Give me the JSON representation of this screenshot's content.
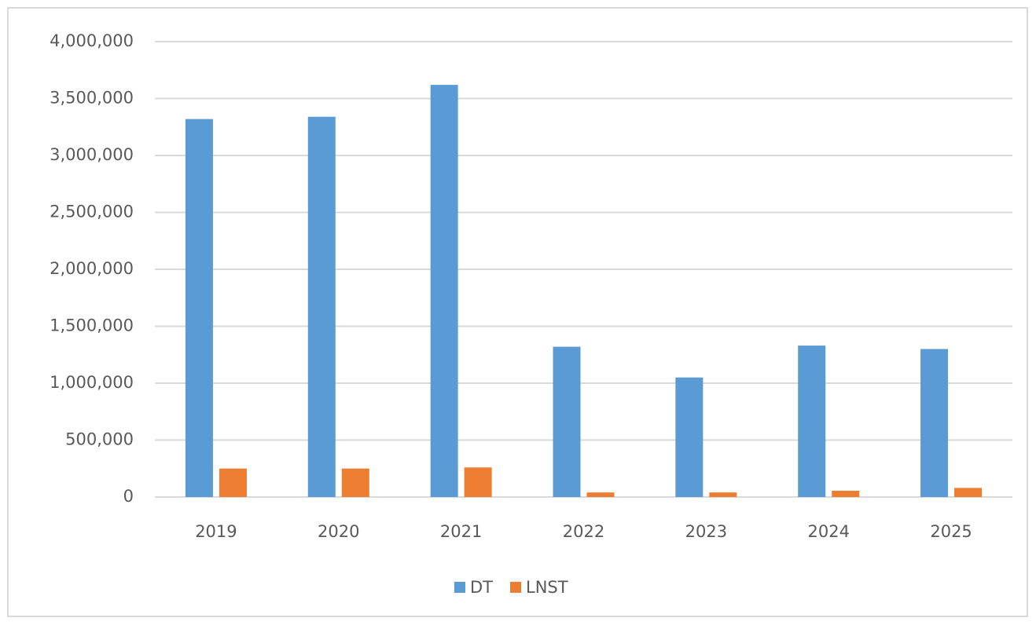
{
  "chart_data": {
    "type": "bar",
    "categories": [
      "2019",
      "2020",
      "2021",
      "2022",
      "2023",
      "2024",
      "2025"
    ],
    "series": [
      {
        "name": "DT",
        "color": "#5b9bd5",
        "values": [
          3320000,
          3340000,
          3620000,
          1320000,
          1050000,
          1330000,
          1300000
        ]
      },
      {
        "name": "LNST",
        "color": "#ed7d31",
        "values": [
          250000,
          250000,
          260000,
          40000,
          40000,
          55000,
          80000
        ]
      }
    ],
    "ylim": [
      0,
      4000000
    ],
    "yticks": [
      0,
      {
        "value": 500000,
        "label": "500,000"
      },
      {
        "value": 1000000,
        "label": "1,000,000"
      },
      {
        "value": 1500000,
        "label": "1,500,000"
      },
      {
        "value": 2000000,
        "label": "2,000,000"
      },
      {
        "value": 2500000,
        "label": "2,500,000"
      },
      {
        "value": 3000000,
        "label": "3,000,000"
      },
      {
        "value": 3500000,
        "label": "3,500,000"
      },
      {
        "value": 4000000,
        "label": "4,000,000"
      }
    ],
    "grid": true,
    "legend": "bottom"
  }
}
